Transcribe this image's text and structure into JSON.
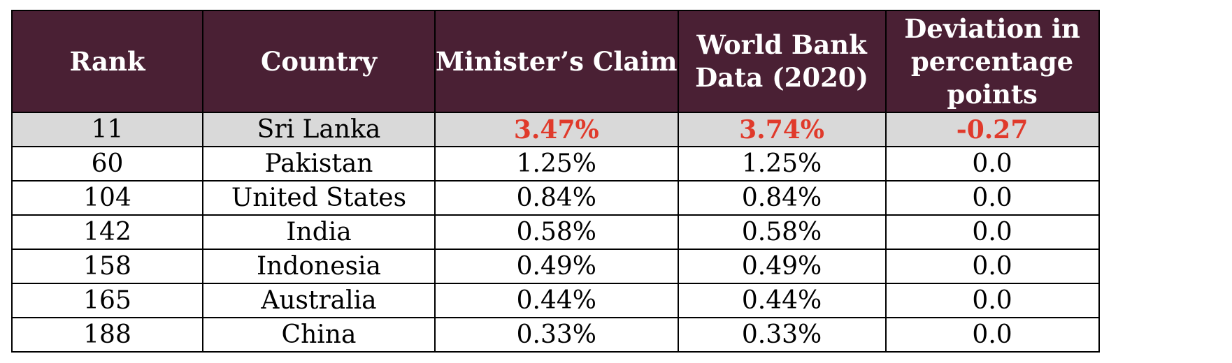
{
  "table": {
    "headers": [
      "Rank",
      "Country",
      "Minister’s Claim",
      "World Bank Data (2020)",
      "Deviation in percentage points"
    ],
    "rows": [
      {
        "rank": "11",
        "country": "Sri Lanka",
        "claim": "3.47%",
        "world_bank": "3.74%",
        "deviation": "-0.27",
        "highlighted": true
      },
      {
        "rank": "60",
        "country": "Pakistan",
        "claim": "1.25%",
        "world_bank": "1.25%",
        "deviation": "0.0"
      },
      {
        "rank": "104",
        "country": "United States",
        "claim": "0.84%",
        "world_bank": "0.84%",
        "deviation": "0.0"
      },
      {
        "rank": "142",
        "country": "India",
        "claim": "0.58%",
        "world_bank": "0.58%",
        "deviation": "0.0"
      },
      {
        "rank": "158",
        "country": "Indonesia",
        "claim": "0.49%",
        "world_bank": "0.49%",
        "deviation": "0.0"
      },
      {
        "rank": "165",
        "country": "Australia",
        "claim": "0.44%",
        "world_bank": "0.44%",
        "deviation": "0.0"
      },
      {
        "rank": "188",
        "country": "China",
        "claim": "0.33%",
        "world_bank": "0.33%",
        "deviation": "0.0"
      }
    ]
  },
  "colors": {
    "header_bg": "#4a2034",
    "header_text": "#ffffff",
    "highlight_row_bg": "#d9d9d9",
    "highlight_value_text": "#e03a2b"
  }
}
